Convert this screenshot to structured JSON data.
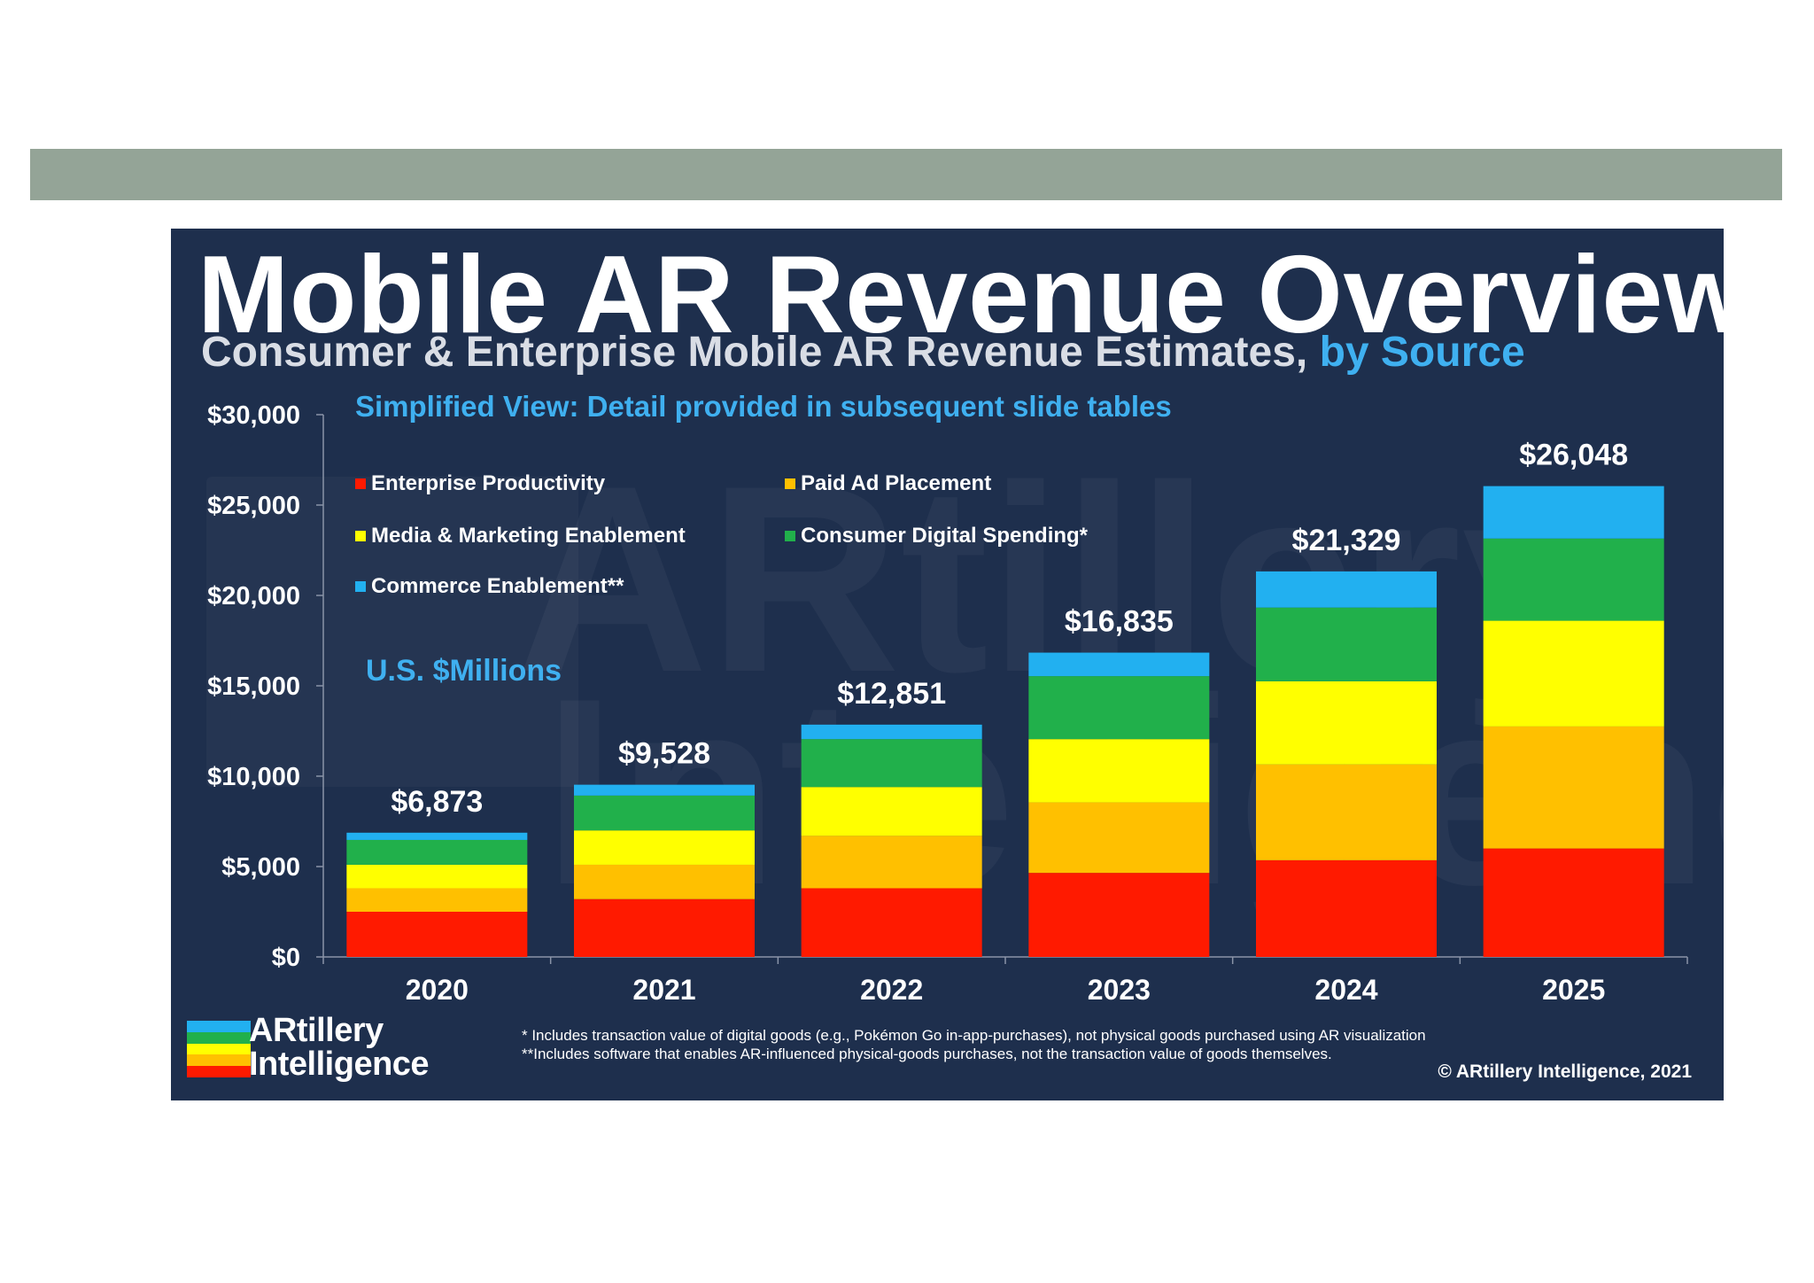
{
  "colors": {
    "slide_bg": "#1e2f4d",
    "band": "#94a497",
    "accent": "#3fb0f0"
  },
  "slide": {
    "title": "Mobile AR Revenue Overview",
    "subtitle_main": "Consumer & Enterprise Mobile AR Revenue Estimates, ",
    "subtitle_accent": "by Source",
    "note": "Simplified View: Detail provided in subsequent slide tables",
    "units": "U.S. $Millions",
    "logo_line1": "ARtillery",
    "logo_line2": "Intelligence",
    "footnote1": "* Includes transaction value of digital goods (e.g., Pokémon Go in-app-purchases), not physical goods purchased using AR visualization",
    "footnote2": "**Includes software that enables AR-influenced physical-goods purchases, not the transaction value of goods themselves.",
    "copyright": "© ARtillery Intelligence, 2021"
  },
  "chart_data": {
    "type": "bar",
    "stacked": true,
    "title": "Mobile AR Revenue Overview",
    "ylabel": "U.S. $Millions",
    "ylim": [
      0,
      30000
    ],
    "yticks": [
      0,
      5000,
      10000,
      15000,
      20000,
      25000,
      30000
    ],
    "ytick_labels": [
      "$0",
      "$5,000",
      "$10,000",
      "$15,000",
      "$20,000",
      "$25,000",
      "$30,000"
    ],
    "categories": [
      "2020",
      "2021",
      "2022",
      "2023",
      "2024",
      "2025"
    ],
    "totals": [
      6873,
      9528,
      12851,
      16835,
      21329,
      26048
    ],
    "total_labels": [
      "$6,873",
      "$9,528",
      "$12,851",
      "$16,835",
      "$21,329",
      "$26,048"
    ],
    "series": [
      {
        "name": "Enterprise Productivity",
        "color": "#ff1a00",
        "values": [
          2500,
          3200,
          3800,
          4650,
          5350,
          6000
        ]
      },
      {
        "name": "Paid Ad Placement",
        "color": "#ffc000",
        "values": [
          1300,
          1900,
          2900,
          3900,
          5300,
          6750
        ]
      },
      {
        "name": "Media & Marketing Enablement",
        "color": "#ffff00",
        "values": [
          1300,
          1900,
          2700,
          3500,
          4600,
          5850
        ]
      },
      {
        "name": "Consumer Digital Spending*",
        "color": "#21b04b",
        "values": [
          1373,
          1928,
          2651,
          3485,
          4079,
          4548
        ]
      },
      {
        "name": "Commerce Enablement**",
        "color": "#22b0f0",
        "values": [
          400,
          600,
          800,
          1300,
          2000,
          2900
        ]
      }
    ]
  }
}
